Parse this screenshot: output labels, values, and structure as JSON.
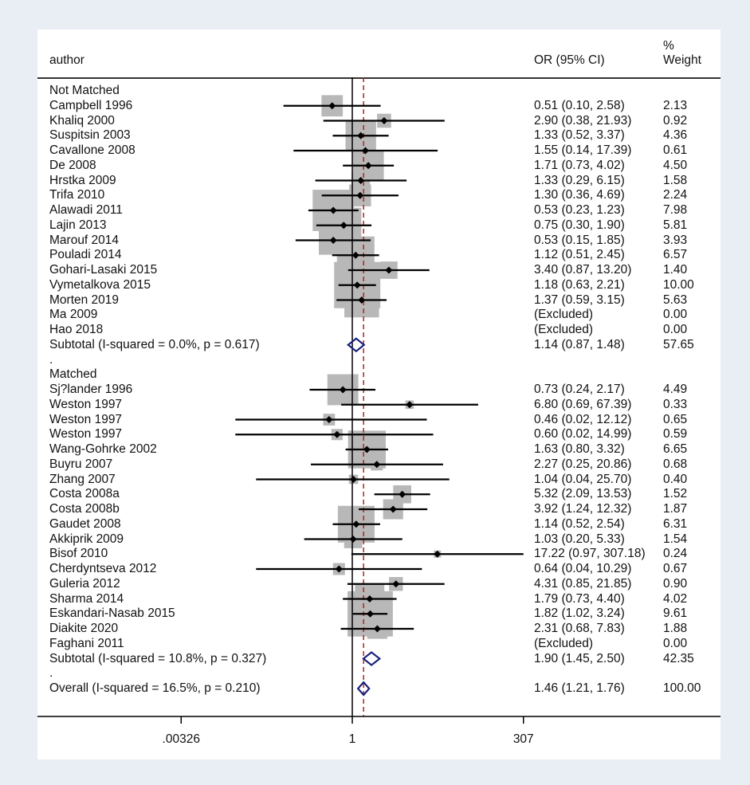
{
  "chart_data": {
    "type": "forest",
    "x_scale": "log",
    "null_line": 1,
    "overall_line": 1.46,
    "columns": {
      "author": "author",
      "or_ci": "OR (95% CI)",
      "weight_pct": "%",
      "weight_label": "Weight"
    },
    "x_ticks": [
      ".00326",
      "1",
      "307"
    ],
    "groups": [
      {
        "name": "Not Matched",
        "studies": [
          {
            "label": "Campbell 1996",
            "or": 0.51,
            "lo": 0.1,
            "hi": 2.58,
            "text": "0.51 (0.10, 2.58)",
            "weight": "2.13"
          },
          {
            "label": "Khaliq 2000",
            "or": 2.9,
            "lo": 0.38,
            "hi": 21.93,
            "text": "2.90 (0.38, 21.93)",
            "weight": "0.92"
          },
          {
            "label": "Suspitsin 2003",
            "or": 1.33,
            "lo": 0.52,
            "hi": 3.37,
            "text": "1.33 (0.52, 3.37)",
            "weight": "4.36"
          },
          {
            "label": "Cavallone 2008",
            "or": 1.55,
            "lo": 0.14,
            "hi": 17.39,
            "text": "1.55 (0.14, 17.39)",
            "weight": "0.61"
          },
          {
            "label": "De 2008",
            "or": 1.71,
            "lo": 0.73,
            "hi": 4.02,
            "text": "1.71 (0.73, 4.02)",
            "weight": "4.50"
          },
          {
            "label": "Hrstka 2009",
            "or": 1.33,
            "lo": 0.29,
            "hi": 6.15,
            "text": "1.33 (0.29, 6.15)",
            "weight": "1.58"
          },
          {
            "label": "Trifa 2010",
            "or": 1.3,
            "lo": 0.36,
            "hi": 4.69,
            "text": "1.30 (0.36, 4.69)",
            "weight": "2.24"
          },
          {
            "label": "Alawadi 2011",
            "or": 0.53,
            "lo": 0.23,
            "hi": 1.23,
            "text": "0.53 (0.23, 1.23)",
            "weight": "7.98"
          },
          {
            "label": "Lajin 2013",
            "or": 0.75,
            "lo": 0.3,
            "hi": 1.9,
            "text": "0.75 (0.30, 1.90)",
            "weight": "5.81"
          },
          {
            "label": "Marouf 2014",
            "or": 0.53,
            "lo": 0.15,
            "hi": 1.85,
            "text": "0.53 (0.15, 1.85)",
            "weight": "3.93"
          },
          {
            "label": "Pouladi 2014",
            "or": 1.12,
            "lo": 0.51,
            "hi": 2.45,
            "text": "1.12 (0.51, 2.45)",
            "weight": "6.57"
          },
          {
            "label": "Gohari-Lasaki 2015",
            "or": 3.4,
            "lo": 0.87,
            "hi": 13.2,
            "text": "3.40 (0.87, 13.20)",
            "weight": "1.40"
          },
          {
            "label": "Vymetalkova 2015",
            "or": 1.18,
            "lo": 0.63,
            "hi": 2.21,
            "text": "1.18 (0.63, 2.21)",
            "weight": "10.00"
          },
          {
            "label": "Morten 2019",
            "or": 1.37,
            "lo": 0.59,
            "hi": 3.15,
            "text": "1.37 (0.59, 3.15)",
            "weight": "5.63"
          },
          {
            "label": "Ma 2009",
            "or": null,
            "lo": null,
            "hi": null,
            "text": "(Excluded)",
            "weight": "0.00"
          },
          {
            "label": "Hao 2018",
            "or": null,
            "lo": null,
            "hi": null,
            "text": "(Excluded)",
            "weight": "0.00"
          }
        ],
        "subtotal": {
          "label": "Subtotal  (I-squared = 0.0%, p = 0.617)",
          "or": 1.14,
          "lo": 0.87,
          "hi": 1.48,
          "text": "1.14 (0.87, 1.48)",
          "weight": "57.65"
        }
      },
      {
        "name": "Matched",
        "studies": [
          {
            "label": "Sj?lander 1996",
            "or": 0.73,
            "lo": 0.24,
            "hi": 2.17,
            "text": "0.73 (0.24, 2.17)",
            "weight": "4.49"
          },
          {
            "label": "Weston 1997",
            "or": 6.8,
            "lo": 0.69,
            "hi": 67.39,
            "text": "6.80 (0.69, 67.39)",
            "weight": "0.33"
          },
          {
            "label": "Weston 1997",
            "or": 0.46,
            "lo": 0.02,
            "hi": 12.12,
            "text": "0.46 (0.02, 12.12)",
            "weight": "0.65"
          },
          {
            "label": "Weston 1997",
            "or": 0.6,
            "lo": 0.02,
            "hi": 14.99,
            "text": "0.60 (0.02, 14.99)",
            "weight": "0.59"
          },
          {
            "label": "Wang-Gohrke 2002",
            "or": 1.63,
            "lo": 0.8,
            "hi": 3.32,
            "text": "1.63 (0.80, 3.32)",
            "weight": "6.65"
          },
          {
            "label": "Buyru 2007",
            "or": 2.27,
            "lo": 0.25,
            "hi": 20.86,
            "text": "2.27 (0.25, 20.86)",
            "weight": "0.68"
          },
          {
            "label": "Zhang 2007",
            "or": 1.04,
            "lo": 0.04,
            "hi": 25.7,
            "text": "1.04 (0.04, 25.70)",
            "weight": "0.40"
          },
          {
            "label": "Costa 2008a",
            "or": 5.32,
            "lo": 2.09,
            "hi": 13.53,
            "text": "5.32 (2.09, 13.53)",
            "weight": "1.52"
          },
          {
            "label": "Costa 2008b",
            "or": 3.92,
            "lo": 1.24,
            "hi": 12.32,
            "text": "3.92 (1.24, 12.32)",
            "weight": "1.87"
          },
          {
            "label": "Gaudet 2008",
            "or": 1.14,
            "lo": 0.52,
            "hi": 2.54,
            "text": "1.14 (0.52, 2.54)",
            "weight": "6.31"
          },
          {
            "label": "Akkiprik 2009",
            "or": 1.03,
            "lo": 0.2,
            "hi": 5.33,
            "text": "1.03 (0.20, 5.33)",
            "weight": "1.54"
          },
          {
            "label": "Bisof 2010",
            "or": 17.22,
            "lo": 0.97,
            "hi": 307.18,
            "text": "17.22 (0.97, 307.18)",
            "weight": "0.24"
          },
          {
            "label": "Cherdyntseva 2012",
            "or": 0.64,
            "lo": 0.04,
            "hi": 10.29,
            "text": "0.64 (0.04, 10.29)",
            "weight": "0.67"
          },
          {
            "label": "Guleria 2012",
            "or": 4.31,
            "lo": 0.85,
            "hi": 21.85,
            "text": "4.31 (0.85, 21.85)",
            "weight": "0.90"
          },
          {
            "label": "Sharma 2014",
            "or": 1.79,
            "lo": 0.73,
            "hi": 4.4,
            "text": "1.79 (0.73, 4.40)",
            "weight": "4.02"
          },
          {
            "label": "Eskandari-Nasab 2015",
            "or": 1.82,
            "lo": 1.02,
            "hi": 3.24,
            "text": "1.82 (1.02, 3.24)",
            "weight": "9.61"
          },
          {
            "label": "Diakite 2020",
            "or": 2.31,
            "lo": 0.68,
            "hi": 7.83,
            "text": "2.31 (0.68, 7.83)",
            "weight": "1.88"
          },
          {
            "label": "Faghani 2011",
            "or": null,
            "lo": null,
            "hi": null,
            "text": "(Excluded)",
            "weight": "0.00"
          }
        ],
        "subtotal": {
          "label": "Subtotal  (I-squared = 10.8%, p = 0.327)",
          "or": 1.9,
          "lo": 1.45,
          "hi": 2.5,
          "text": "1.90 (1.45, 2.50)",
          "weight": "42.35"
        }
      }
    ],
    "separator_label": ".",
    "overall": {
      "label": "Overall  (I-squared = 16.5%, p = 0.210)",
      "or": 1.46,
      "lo": 1.21,
      "hi": 1.76,
      "text": "1.46 (1.21, 1.76)",
      "weight": "100.00"
    },
    "colors": {
      "background": "#e8eef4",
      "panel": "#ffffff",
      "box": "#b8b8b8",
      "line": "#000000",
      "diamond": "#1a237e",
      "overall_line": "#b22222"
    }
  }
}
